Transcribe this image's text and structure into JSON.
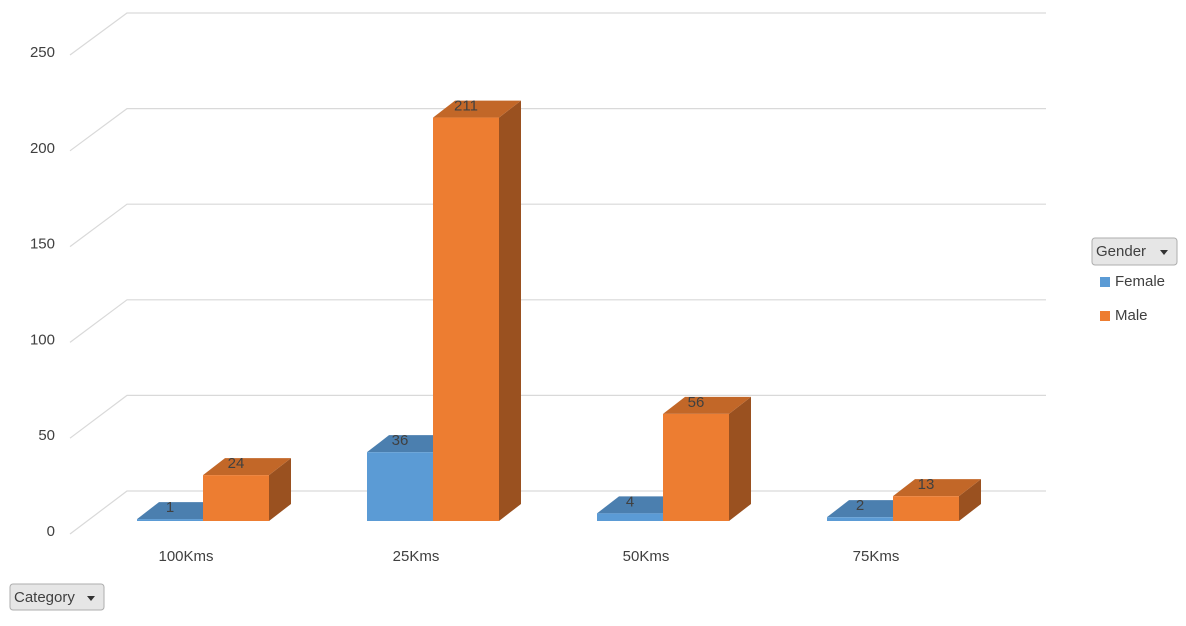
{
  "chart_data": {
    "type": "bar3d",
    "categories": [
      "100Kms",
      "25Kms",
      "50Kms",
      "75Kms"
    ],
    "legend_title": "Gender",
    "axis_field_button": "Category",
    "series": [
      {
        "name": "Female",
        "color": "#5b9bd5",
        "values": [
          1,
          36,
          4,
          2
        ]
      },
      {
        "name": "Male",
        "color": "#ed7d31",
        "values": [
          24,
          211,
          56,
          13
        ]
      }
    ],
    "ylim": [
      0,
      250
    ],
    "yticks": [
      0,
      50,
      100,
      150,
      200,
      250
    ],
    "grid": true,
    "legend": "right"
  }
}
